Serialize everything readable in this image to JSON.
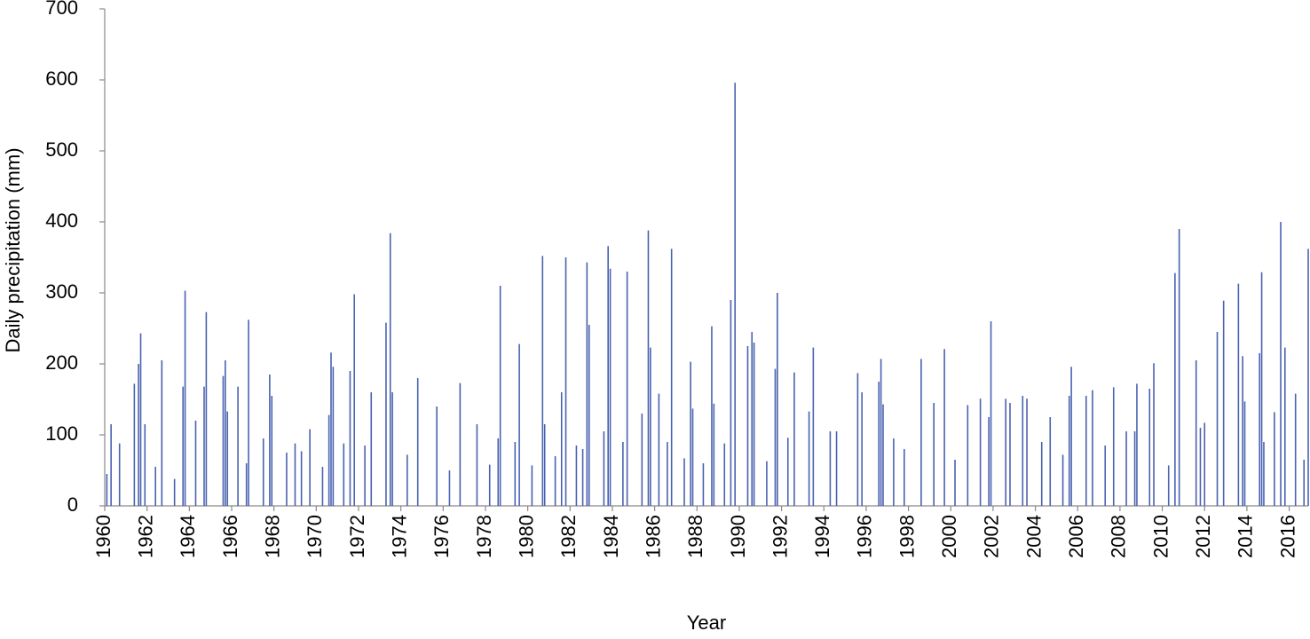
{
  "chart_data": {
    "type": "bar",
    "xlabel": "Year",
    "ylabel": "Daily precipitation (mm)",
    "color": "#4a62b0",
    "xlim": [
      1960,
      2016.9
    ],
    "xticks": [
      1960,
      1962,
      1964,
      1966,
      1968,
      1970,
      1972,
      1974,
      1976,
      1978,
      1980,
      1982,
      1984,
      1986,
      1988,
      1990,
      1992,
      1994,
      1996,
      1998,
      2000,
      2002,
      2004,
      2006,
      2008,
      2010,
      2012,
      2014,
      2016
    ],
    "ylim": [
      0,
      700
    ],
    "yticks": [
      0,
      100,
      200,
      300,
      400,
      500,
      600,
      700
    ],
    "x": [
      1960.1,
      1960.3,
      1960.7,
      1961.4,
      1961.6,
      1961.7,
      1961.9,
      1962.4,
      1962.7,
      1963.3,
      1963.7,
      1963.8,
      1964.3,
      1964.7,
      1964.8,
      1965.6,
      1965.7,
      1965.8,
      1966.3,
      1966.7,
      1966.8,
      1967.5,
      1967.8,
      1967.9,
      1968.6,
      1969.0,
      1969.3,
      1969.7,
      1970.3,
      1970.6,
      1970.7,
      1970.8,
      1971.3,
      1971.6,
      1971.8,
      1972.3,
      1972.6,
      1973.3,
      1973.5,
      1973.6,
      1974.3,
      1974.8,
      1975.7,
      1976.3,
      1976.8,
      1977.6,
      1978.2,
      1978.6,
      1978.7,
      1979.4,
      1979.6,
      1980.2,
      1980.7,
      1980.8,
      1981.3,
      1981.6,
      1981.8,
      1982.3,
      1982.6,
      1982.8,
      1982.9,
      1983.6,
      1983.8,
      1983.9,
      1984.5,
      1984.7,
      1985.4,
      1985.7,
      1985.8,
      1986.2,
      1986.6,
      1986.8,
      1987.4,
      1987.7,
      1987.8,
      1988.3,
      1988.7,
      1988.8,
      1989.3,
      1989.6,
      1989.8,
      1990.4,
      1990.6,
      1990.7,
      1991.3,
      1991.7,
      1991.8,
      1992.3,
      1992.6,
      1993.3,
      1993.5,
      1994.3,
      1994.6,
      1995.6,
      1995.8,
      1996.6,
      1996.7,
      1996.8,
      1997.3,
      1997.8,
      1998.6,
      1999.2,
      1999.7,
      2000.2,
      2000.8,
      2001.4,
      2001.8,
      2001.9,
      2002.6,
      2002.8,
      2003.4,
      2003.6,
      2004.3,
      2004.7,
      2005.3,
      2005.6,
      2005.7,
      2006.4,
      2006.7,
      2007.3,
      2007.7,
      2008.3,
      2008.7,
      2008.8,
      2009.4,
      2009.6,
      2010.3,
      2010.6,
      2010.8,
      2011.6,
      2011.8,
      2012.0,
      2012.6,
      2012.9,
      2013.6,
      2013.8,
      2013.9,
      2014.6,
      2014.7,
      2014.8,
      2015.3,
      2015.6,
      2015.8,
      2016.3,
      2016.7,
      2016.9
    ],
    "values": [
      45,
      115,
      88,
      172,
      200,
      243,
      115,
      55,
      205,
      38,
      168,
      303,
      120,
      168,
      273,
      183,
      205,
      133,
      168,
      60,
      262,
      95,
      185,
      155,
      75,
      88,
      77,
      108,
      55,
      128,
      216,
      196,
      88,
      190,
      298,
      85,
      160,
      258,
      384,
      160,
      72,
      180,
      140,
      50,
      173,
      115,
      58,
      95,
      310,
      90,
      228,
      57,
      352,
      115,
      70,
      160,
      350,
      85,
      80,
      343,
      255,
      105,
      366,
      334,
      90,
      330,
      130,
      388,
      223,
      158,
      90,
      362,
      67,
      203,
      137,
      60,
      253,
      144,
      88,
      290,
      596,
      225,
      245,
      230,
      63,
      193,
      300,
      96,
      188,
      133,
      223,
      105,
      105,
      187,
      160,
      175,
      207,
      143,
      95,
      80,
      207,
      145,
      221,
      65,
      142,
      151,
      125,
      260,
      151,
      145,
      155,
      151,
      90,
      125,
      72,
      155,
      196,
      155,
      163,
      85,
      167,
      105,
      105,
      172,
      165,
      201,
      57,
      328,
      390,
      205,
      110,
      117,
      245,
      289,
      313,
      211,
      147,
      215,
      329,
      90,
      132,
      400,
      223,
      158,
      65,
      362
    ]
  }
}
